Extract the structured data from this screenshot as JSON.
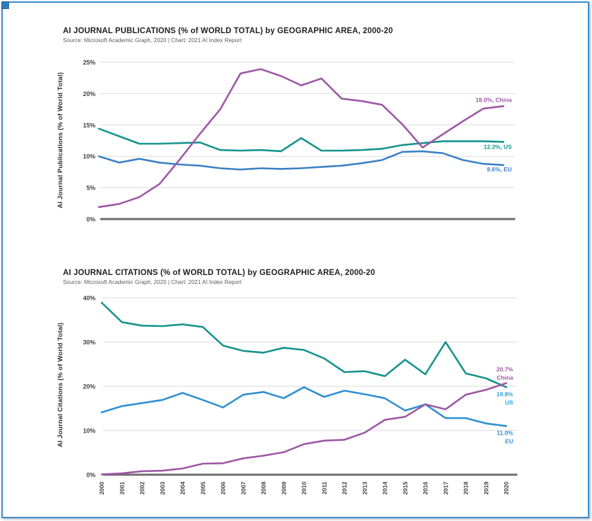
{
  "frame": {
    "border_color": "#3a8bcd",
    "handle_color": "#2d7cbe"
  },
  "chart_data": [
    {
      "type": "line",
      "title": "AI JOURNAL PUBLICATIONS (% of WORLD TOTAL) by GEOGRAPHIC AREA, 2000-20",
      "source": "Source: Microsoft Academic Graph, 2020 | Chart: 2021 AI Index Report",
      "ylabel": "AI Journal Publications (% of World Total)",
      "ylim": [
        0,
        25
      ],
      "ytick_values": [
        0,
        5,
        10,
        15,
        20,
        25
      ],
      "ytick_labels": [
        "0%",
        "5%",
        "10%",
        "15%",
        "20%",
        "25%"
      ],
      "grid": true,
      "legend_position": "end-labels-right",
      "x": [
        "2000",
        "2001",
        "2002",
        "2003",
        "2004",
        "2005",
        "2006",
        "2007",
        "2008",
        "2009",
        "2010",
        "2011",
        "2012",
        "2013",
        "2014",
        "2015",
        "2016",
        "2017",
        "2018",
        "2019",
        "2020"
      ],
      "series": [
        {
          "name": "China",
          "color": "#9d57a6",
          "label_color": "#9d57a6",
          "end_label": [
            "18.0%, China"
          ],
          "values": [
            1.9,
            2.4,
            3.5,
            5.6,
            9.5,
            13.6,
            17.5,
            23.2,
            23.9,
            22.8,
            21.3,
            22.4,
            19.2,
            18.8,
            18.2,
            15.1,
            11.4,
            13.5,
            15.6,
            17.6,
            18.0
          ]
        },
        {
          "name": "US",
          "color": "#15938d",
          "label_color": "#15938d",
          "end_label": [
            "12.3%, US"
          ],
          "values": [
            14.4,
            13.2,
            12.0,
            12.0,
            12.1,
            12.2,
            11.0,
            10.9,
            11.0,
            10.8,
            12.9,
            10.9,
            10.9,
            11.0,
            11.2,
            11.8,
            12.1,
            12.4,
            12.4,
            12.4,
            12.3
          ]
        },
        {
          "name": "EU",
          "color": "#3b80c4",
          "label_color": "#3b80c4",
          "end_label": [
            "8.6%, EU"
          ],
          "values": [
            10.0,
            9.0,
            9.6,
            9.0,
            8.7,
            8.5,
            8.1,
            7.9,
            8.1,
            8.0,
            8.1,
            8.3,
            8.5,
            8.9,
            9.4,
            10.7,
            10.8,
            10.5,
            9.4,
            8.8,
            8.6
          ]
        }
      ]
    },
    {
      "type": "line",
      "title": "AI JOURNAL CITATIONS (% of WORLD TOTAL) by GEOGRAPHIC AREA, 2000-20",
      "source": "Source: Microsoft Academic Graph, 2020 | Chart: 2021 AI Index Report",
      "ylabel": "AI Journal Citations (% of World Total)",
      "ylim": [
        0,
        40
      ],
      "ytick_values": [
        0,
        10,
        20,
        30,
        40
      ],
      "ytick_labels": [
        "0%",
        "10%",
        "20%",
        "30%",
        "40%"
      ],
      "grid": true,
      "legend_position": "end-labels-right",
      "x": [
        "2000",
        "2001",
        "2002",
        "2003",
        "2004",
        "2005",
        "2006",
        "2007",
        "2008",
        "2009",
        "2010",
        "2011",
        "2012",
        "2013",
        "2014",
        "2015",
        "2016",
        "2017",
        "2018",
        "2019",
        "2020"
      ],
      "series": [
        {
          "name": "China",
          "color": "#9d57a6",
          "label_color": "#9d57a6",
          "end_label": [
            "20.7%",
            "China"
          ],
          "values": [
            0.1,
            0.3,
            0.8,
            0.9,
            1.4,
            2.5,
            2.6,
            3.7,
            4.3,
            5.1,
            6.9,
            7.7,
            7.9,
            9.5,
            12.4,
            13.1,
            15.9,
            14.8,
            18.1,
            19.2,
            20.7
          ]
        },
        {
          "name": "US",
          "color": "#15938d",
          "label_color": "#29a2da",
          "end_label": [
            "19.8%",
            "US"
          ],
          "values": [
            38.9,
            34.5,
            33.7,
            33.6,
            34.0,
            33.4,
            29.2,
            28.0,
            27.6,
            28.7,
            28.2,
            26.3,
            23.2,
            23.4,
            22.3,
            26.0,
            22.7,
            30.0,
            22.9,
            21.8,
            19.8
          ]
        },
        {
          "name": "EU",
          "color": "#2e8fcf",
          "label_color": "#2e8fcf",
          "end_label": [
            "11.0%",
            "EU"
          ],
          "values": [
            14.1,
            15.5,
            16.2,
            16.9,
            18.5,
            16.9,
            15.2,
            18.1,
            18.7,
            17.3,
            19.8,
            17.6,
            19.0,
            18.2,
            17.3,
            14.5,
            15.9,
            12.8,
            12.8,
            11.6,
            11.0
          ]
        }
      ]
    }
  ]
}
